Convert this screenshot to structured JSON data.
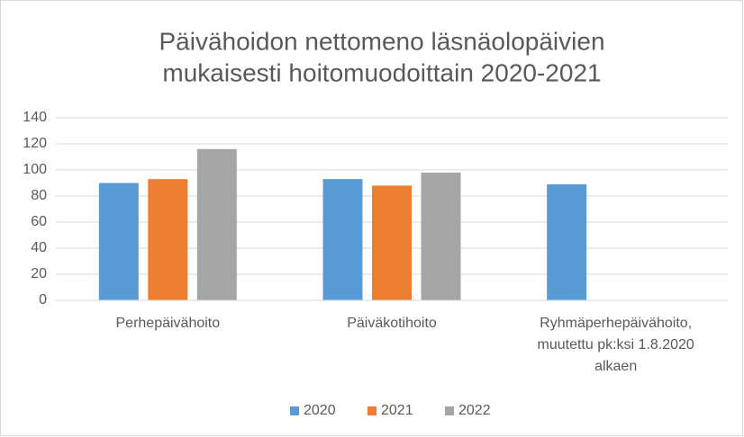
{
  "chart_data": {
    "type": "bar",
    "title": [
      "Päivähoidon nettomeno läsnäolopäivien",
      "mukaisesti hoitomuodoittain 2020-2021"
    ],
    "categories": [
      [
        "Perhepäivähoito"
      ],
      [
        "Päiväkotihoito"
      ],
      [
        "Ryhmäperhepäivähoito,",
        "muutettu pk:ksi 1.8.2020",
        "alkaen"
      ]
    ],
    "series": [
      {
        "name": "2020",
        "color": "#5b9bd5",
        "values": [
          90,
          93,
          89
        ]
      },
      {
        "name": "2021",
        "color": "#ed7d31",
        "values": [
          93,
          88,
          null
        ]
      },
      {
        "name": "2022",
        "color": "#a5a5a5",
        "values": [
          116,
          98,
          null
        ]
      }
    ],
    "ylim": [
      0,
      140
    ],
    "yticks": [
      0,
      20,
      40,
      60,
      80,
      100,
      120,
      140
    ],
    "grid": true,
    "legend": "bottom"
  }
}
